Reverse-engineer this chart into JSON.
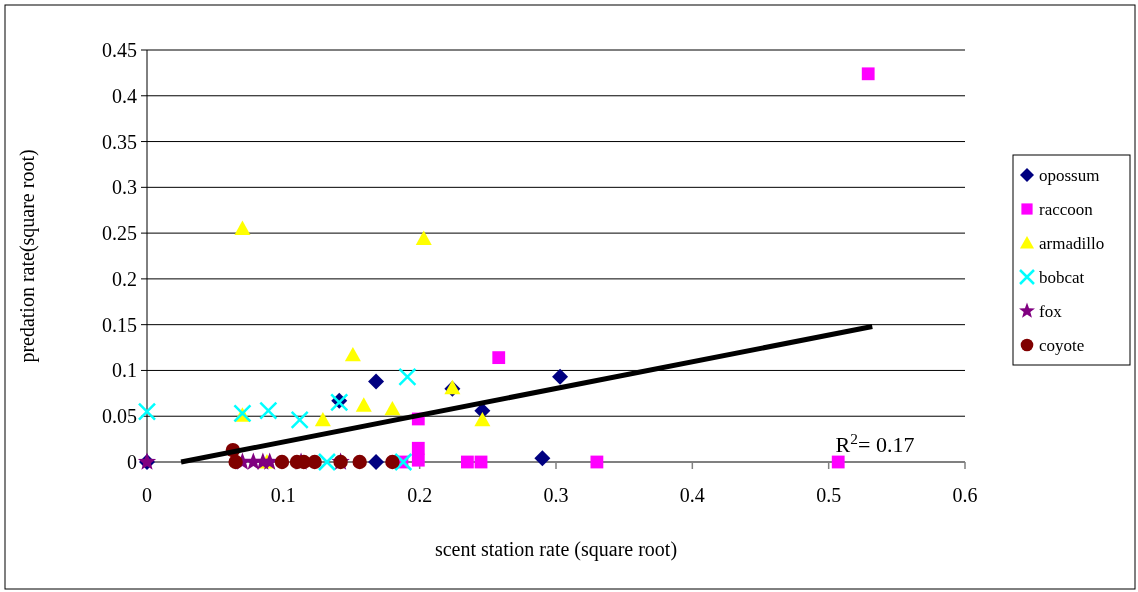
{
  "chart_data": {
    "type": "scatter",
    "xlabel": "scent station rate (square root)",
    "ylabel": "predation rate(square root)",
    "xlim": [
      0,
      0.6
    ],
    "xticks": [
      0,
      0.1,
      0.2,
      0.3,
      0.4,
      0.5,
      0.6
    ],
    "ylim": [
      0,
      0.45
    ],
    "yticks": [
      0,
      0.05,
      0.1,
      0.15,
      0.2,
      0.25,
      0.3,
      0.35,
      0.4,
      0.45
    ],
    "grid": "y",
    "legend": "right",
    "annotations": [
      "R$^{2}$= 0.17"
    ],
    "series": [
      {
        "name": "opossum",
        "color": "#000080",
        "marker": "diamond",
        "x": [
          0,
          0.141,
          0.168,
          0.168,
          0.224,
          0.246,
          0.29,
          0.303
        ],
        "values": [
          0,
          0.067,
          0.088,
          0,
          0.08,
          0.056,
          0.004,
          0.093
        ]
      },
      {
        "name": "raccoon",
        "color": "#ff00ff",
        "marker": "square",
        "x": [
          0.187,
          0.199,
          0.199,
          0.199,
          0.235,
          0.245,
          0.258,
          0.33,
          0.507,
          0.529
        ],
        "values": [
          0,
          0.047,
          0.015,
          0.002,
          0,
          0,
          0.114,
          0,
          0,
          0.424
        ]
      },
      {
        "name": "armadillo",
        "color": "#ffff00",
        "marker": "triangle",
        "x": [
          0.07,
          0.203,
          0.151,
          0.07,
          0.129,
          0.159,
          0.18,
          0.224,
          0.246,
          0.088
        ],
        "values": [
          0.255,
          0.244,
          0.117,
          0.051,
          0.046,
          0.062,
          0.058,
          0.081,
          0.046,
          0
        ]
      },
      {
        "name": "bobcat",
        "color": "#00ffff",
        "marker": "cross",
        "x": [
          0,
          0.07,
          0.089,
          0.112,
          0.141,
          0.191,
          0.132,
          0.188
        ],
        "values": [
          0.055,
          0.053,
          0.056,
          0.046,
          0.065,
          0.093,
          0,
          0
        ]
      },
      {
        "name": "fox",
        "color": "#800080",
        "marker": "star",
        "x": [
          0,
          0.07,
          0.078,
          0.085,
          0.09,
          0.113,
          0.142
        ],
        "values": [
          0,
          0,
          0,
          0,
          0,
          0,
          0
        ]
      },
      {
        "name": "coyote",
        "color": "#800000",
        "marker": "circle",
        "x": [
          0.063,
          0.065,
          0.099,
          0.11,
          0.115,
          0.123,
          0.142,
          0.156,
          0.18
        ],
        "values": [
          0.013,
          0,
          0,
          0,
          0,
          0,
          0,
          0,
          0
        ]
      },
      {
        "type": "line",
        "color": "#000000",
        "marker": "none",
        "x": [
          0.025,
          0.532
        ],
        "values": [
          0,
          0.148
        ]
      }
    ]
  }
}
